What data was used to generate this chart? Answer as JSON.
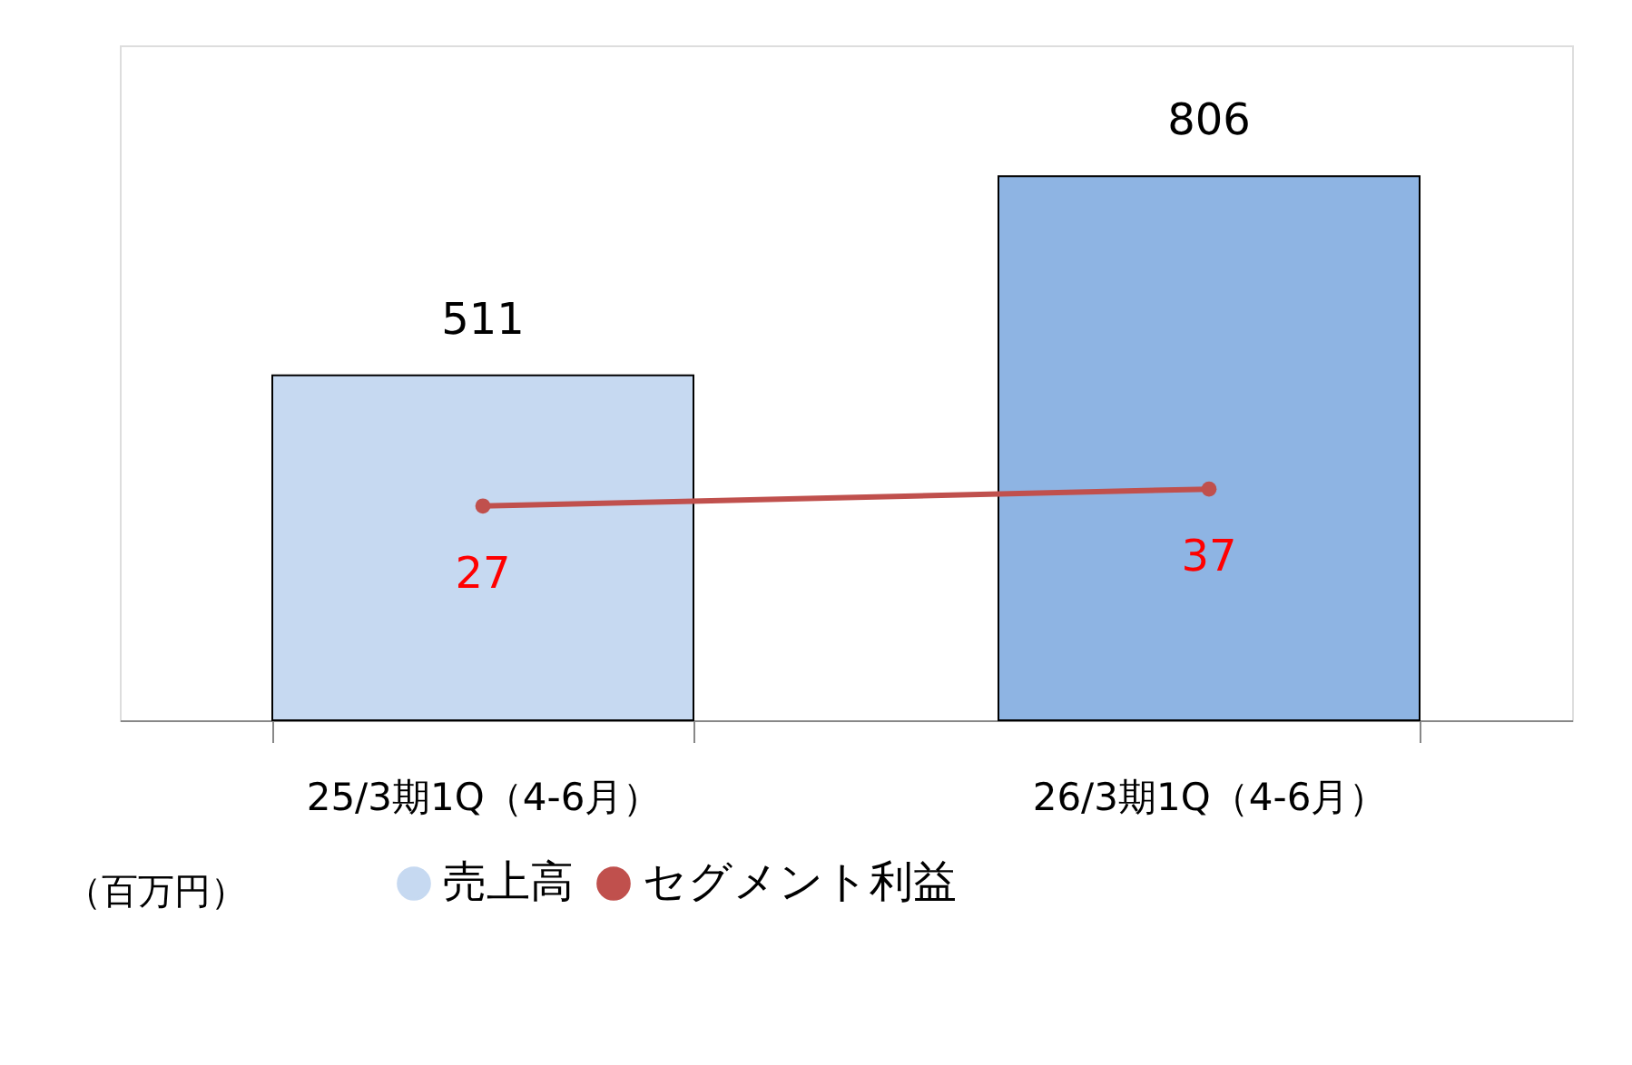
{
  "chart_data": {
    "type": "bar",
    "categories": [
      "25/3期1Q（4-6月）",
      "26/3期1Q（4-6月）"
    ],
    "series": [
      {
        "name": "売上高",
        "color": "#c6d9f1",
        "colors": [
          "#c6d9f1",
          "#8eb4e3"
        ],
        "values": [
          511,
          806
        ]
      },
      {
        "name": "セグメント利益",
        "type": "line",
        "axis": "y2",
        "color": "#c0504d",
        "marker": "circle",
        "values": [
          27,
          37
        ]
      }
    ],
    "ylim": [
      0,
      1000
    ],
    "y2lim": [
      -100,
      300
    ],
    "tick_labels": "x",
    "data_labels": true,
    "legend": "bottom",
    "grid": false,
    "annotations": [
      "（百万円）"
    ]
  }
}
